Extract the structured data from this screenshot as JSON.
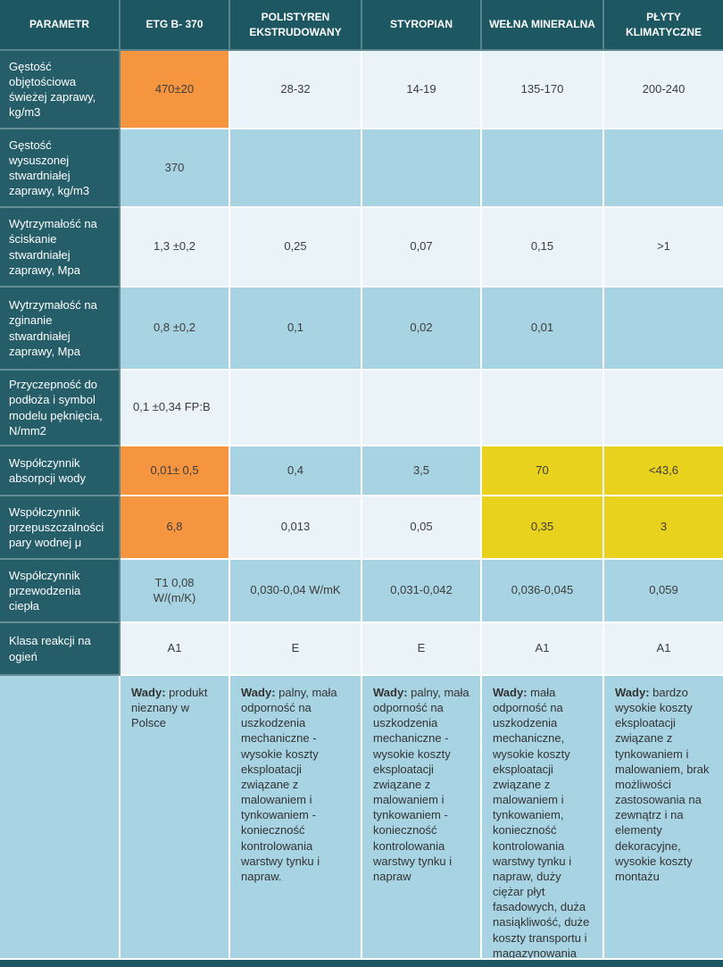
{
  "header": {
    "columns": [
      "PARAMETR",
      "ETG B- 370",
      "POLISTYREN EKSTRUDOWANY",
      "STYROPIAN",
      "WEŁNA MINERALNA",
      "PŁYTY KLIMATYCZNE"
    ]
  },
  "rows": [
    {
      "param": "Gęstość objętościowa świeżej zaprawy, kg/m3",
      "values": [
        "470±20",
        "28-32",
        "14-19",
        "135-170",
        "200-240"
      ],
      "bg": [
        "orange",
        "white",
        "white",
        "white",
        "white"
      ]
    },
    {
      "param": "Gęstość wysuszonej stwardniałej zaprawy, kg/m3",
      "values": [
        "370",
        "",
        "",
        "",
        ""
      ],
      "bg": [
        "blue",
        "blue",
        "blue",
        "blue",
        "blue"
      ]
    },
    {
      "param": "Wytrzymałość na ściskanie stwardniałej zaprawy, Mpa",
      "values": [
        "1,3 ±0,2",
        "0,25",
        "0,07",
        "0,15",
        ">1"
      ],
      "bg": [
        "white",
        "white",
        "white",
        "white",
        "white"
      ]
    },
    {
      "param": "Wytrzymałość na zginanie stwardniałej zaprawy, Mpa",
      "values": [
        "0,8 ±0,2",
        "0,1",
        "0,02",
        "0,01",
        ""
      ],
      "bg": [
        "blue",
        "blue",
        "blue",
        "blue",
        "blue"
      ]
    },
    {
      "param": "Przyczepność do podłoża i symbol modelu pęknięcia, N/mm2",
      "values": [
        "0,1 ±0,34 FP:B",
        "",
        "",
        "",
        ""
      ],
      "bg": [
        "white",
        "white",
        "white",
        "white",
        "white"
      ],
      "align": "left"
    },
    {
      "param": "Współczynnik absorpcji wody",
      "values": [
        "0,01± 0,5",
        "0,4",
        "3,5",
        "70",
        "<43,6"
      ],
      "bg": [
        "orange",
        "blue",
        "blue",
        "yellow",
        "yellow"
      ]
    },
    {
      "param": "Współczynnik przepuszczalności pary wodnej μ",
      "values": [
        "6,8",
        "0,013",
        "0,05",
        "0,35",
        "3"
      ],
      "bg": [
        "orange",
        "white",
        "white",
        "yellow",
        "yellow"
      ]
    },
    {
      "param": "Współczynnik przewodzenia ciepła",
      "values": [
        "T1 0,08\nW/(m/K)",
        "0,030-0,04 W/mK",
        "0,031-0,042",
        "0,036-0,045",
        "0,059"
      ],
      "bg": [
        "blue",
        "blue",
        "blue",
        "blue",
        "blue"
      ]
    },
    {
      "param": "Klasa reakcji na ogień",
      "values": [
        "A1",
        "E",
        "E",
        "A1",
        "A1"
      ],
      "bg": [
        "white",
        "white",
        "white",
        "white",
        "white"
      ]
    }
  ],
  "wady_row": {
    "label": "Wady:",
    "items": [
      "produkt nieznany w Polsce",
      "palny, mała odporność na uszkodzenia mechaniczne - wysokie koszty eksploatacji związane z malowaniem i tynkowaniem - konieczność kontrolowania warstwy tynku i napraw.",
      "palny, mała odporność na uszkodzenia mechaniczne - wysokie koszty eksploatacji związane z malowaniem i tynkowaniem - konieczność kontrolowania warstwy tynku i napraw",
      "mała odporność na uszkodzenia mechaniczne, wysokie koszty eksploatacji związane z malowaniem i tynkowaniem, konieczność kontrolowania warstwy tynku i napraw, duży ciężar płyt fasadowych, duża nasiąkliwość, duże koszty transportu i magazynowania",
      "bardzo wysokie koszty eksploatacji związane z tynkowaniem i malowaniem, brak możliwości zastosowania na zewnątrz i na elementy dekoracyjne, wysokie koszty montażu"
    ]
  },
  "colors": {
    "header_bg": "#1D5761",
    "param_bg": "#255D68",
    "orange": "#F6953F",
    "yellow": "#E8D21D",
    "blue": "#A7D3E2",
    "white": "#EAF3F7",
    "text_dark": "#3C3C3C",
    "footer_bg": "#1D5761"
  }
}
